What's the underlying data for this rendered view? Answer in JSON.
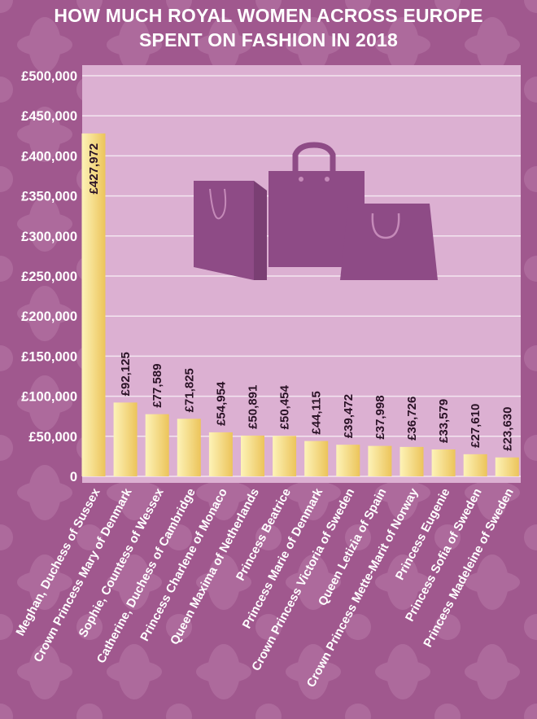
{
  "chart_data": {
    "type": "bar",
    "title": "HOW MUCH ROYAL WOMEN ACROSS EUROPE SPENT ON FASHION IN 2018",
    "title_lines": [
      "HOW MUCH ROYAL WOMEN ACROSS EUROPE",
      "SPENT ON FASHION IN 2018"
    ],
    "categories": [
      "Meghan, Duchess of Sussex",
      "Crown Princess Mary of Denmark",
      "Sophie, Countess of Wessex",
      "Catherine, Duchess of Cambridge",
      "Princess Charlene of Monaco",
      "Queen Maxima of Netherlands",
      "Princess Beatrice",
      "Princess Marie of Denmark",
      "Crown Princess Victoria of Sweden",
      "Queen Letizia of Spain",
      "Crown Princess Mette-Marit of Norway",
      "Princess Eugenie",
      "Princess Sofia of Sweden",
      "Princess Madeleine of Sweden"
    ],
    "values": [
      427972,
      92125,
      77589,
      71825,
      54954,
      50891,
      50454,
      44115,
      39472,
      37998,
      36726,
      33579,
      27610,
      23630
    ],
    "data_labels": [
      "£427,972",
      "£92,125",
      "£77,589",
      "£71,825",
      "£54,954",
      "£50,891",
      "£50,454",
      "£44,115",
      "£39,472",
      "£37,998",
      "£36,726",
      "£33,579",
      "£27,610",
      "£23,630"
    ],
    "y_tick_labels": [
      "0",
      "£50,000",
      "£100,000",
      "£150,000",
      "£200,000",
      "£250,000",
      "£300,000",
      "£350,000",
      "£400,000",
      "£450,000",
      "£500,000"
    ],
    "y_ticks": [
      0,
      50000,
      100000,
      150000,
      200000,
      250000,
      300000,
      350000,
      400000,
      450000,
      500000
    ],
    "ylim": [
      0,
      500000
    ],
    "xlabel": "",
    "ylabel": "",
    "grid": true,
    "legend": "none",
    "colors": {
      "background": "#a0588e",
      "plot_background": "#dcb0d2",
      "grid": "#f3e6f0",
      "bar_light": "#fdf3b8",
      "bar_dark": "#ecc45a",
      "bags": "#8e4b86"
    }
  },
  "decoration": {
    "illustration": "shopping-bags-icon"
  }
}
